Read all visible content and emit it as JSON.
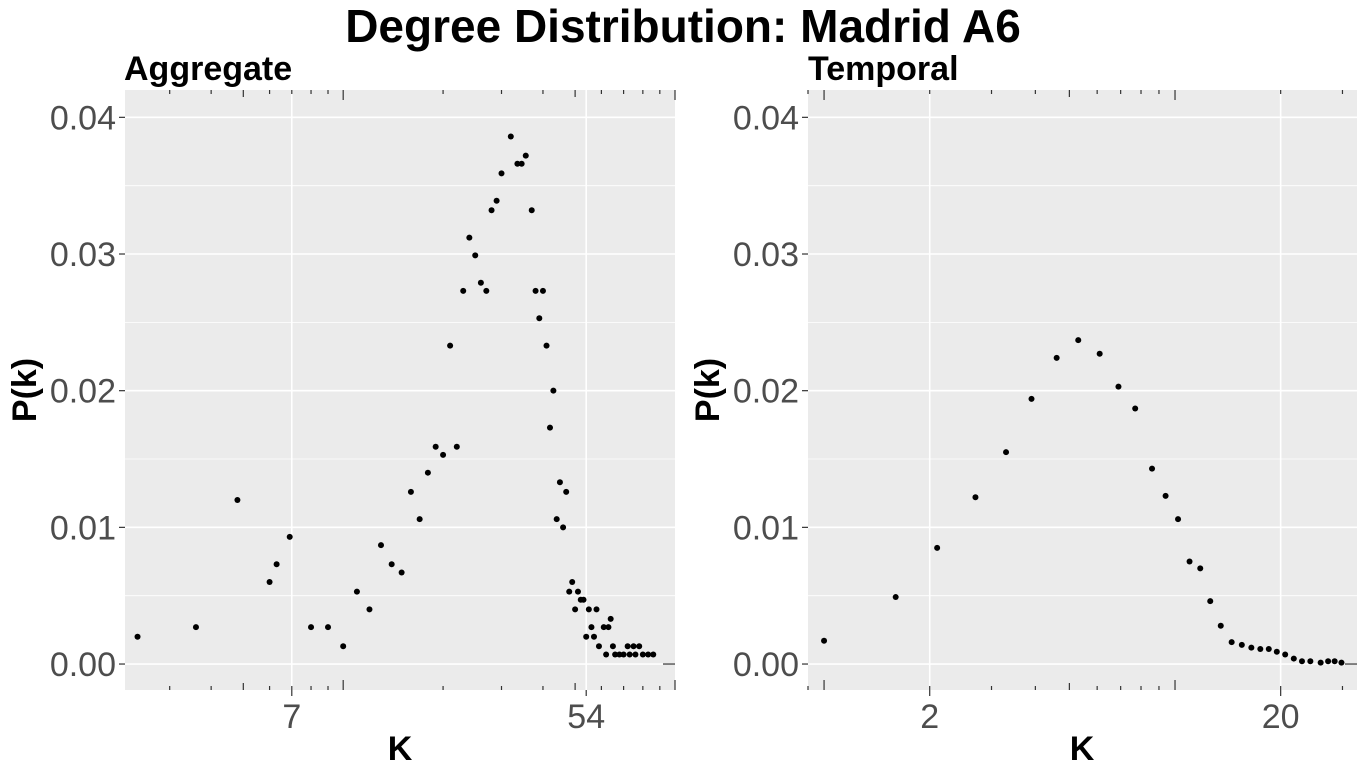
{
  "title": "Degree Distribution:  Madrid A6",
  "chart_data": [
    {
      "type": "scatter",
      "subtitle": "Aggregate",
      "xlabel": "K",
      "ylabel": "P(k)",
      "x_scale": "log",
      "xlim": [
        2.2,
        100
      ],
      "ylim": [
        -0.0019,
        0.042
      ],
      "x_ticks": [
        {
          "value": 7,
          "label": "7"
        },
        {
          "value": 54,
          "label": "54"
        }
      ],
      "y_ticks": [
        {
          "value": 0,
          "label": "0.00"
        },
        {
          "value": 0.01,
          "label": "0.01"
        },
        {
          "value": 0.02,
          "label": "0.02"
        },
        {
          "value": 0.03,
          "label": "0.03"
        },
        {
          "value": 0.04,
          "label": "0.04"
        }
      ],
      "grid": true,
      "points": [
        [
          2.4,
          0.002
        ],
        [
          3.6,
          0.0027
        ],
        [
          4.8,
          0.012
        ],
        [
          6.0,
          0.006
        ],
        [
          6.3,
          0.0073
        ],
        [
          6.9,
          0.0093
        ],
        [
          8.0,
          0.0027
        ],
        [
          9.0,
          0.0027
        ],
        [
          10.0,
          0.0013
        ],
        [
          11.0,
          0.0053
        ],
        [
          12.0,
          0.004
        ],
        [
          13.0,
          0.0087
        ],
        [
          14.0,
          0.0073
        ],
        [
          15.0,
          0.0067
        ],
        [
          16.0,
          0.0126
        ],
        [
          17.0,
          0.0106
        ],
        [
          18.0,
          0.014
        ],
        [
          19.0,
          0.0159
        ],
        [
          20.0,
          0.0153
        ],
        [
          21.0,
          0.0233
        ],
        [
          22.0,
          0.0159
        ],
        [
          23.0,
          0.0273
        ],
        [
          24.0,
          0.0312
        ],
        [
          25.0,
          0.0299
        ],
        [
          26.0,
          0.0279
        ],
        [
          27.0,
          0.0273
        ],
        [
          28.0,
          0.0332
        ],
        [
          29.0,
          0.0339
        ],
        [
          30.0,
          0.0359
        ],
        [
          32.0,
          0.0386
        ],
        [
          33.5,
          0.0366
        ],
        [
          34.5,
          0.0366
        ],
        [
          35.5,
          0.0372
        ],
        [
          37.0,
          0.0332
        ],
        [
          38.0,
          0.0273
        ],
        [
          39.0,
          0.0253
        ],
        [
          40.0,
          0.0273
        ],
        [
          41.0,
          0.0233
        ],
        [
          42.0,
          0.0173
        ],
        [
          43.0,
          0.02
        ],
        [
          44.0,
          0.0106
        ],
        [
          45.0,
          0.0133
        ],
        [
          46.0,
          0.01
        ],
        [
          47.0,
          0.0126
        ],
        [
          48.0,
          0.0053
        ],
        [
          49.0,
          0.006
        ],
        [
          50.0,
          0.004
        ],
        [
          51.0,
          0.0053
        ],
        [
          52.0,
          0.0047
        ],
        [
          53.0,
          0.0047
        ],
        [
          54.0,
          0.002
        ],
        [
          55.0,
          0.004
        ],
        [
          56.0,
          0.0027
        ],
        [
          57.0,
          0.002
        ],
        [
          58.0,
          0.004
        ],
        [
          59.0,
          0.0013
        ],
        [
          61.0,
          0.0027
        ],
        [
          62.0,
          0.0007
        ],
        [
          63.0,
          0.0027
        ],
        [
          64.0,
          0.0033
        ],
        [
          65.0,
          0.0013
        ],
        [
          66.0,
          0.0007
        ],
        [
          68.0,
          0.0007
        ],
        [
          70.0,
          0.0007
        ],
        [
          72.0,
          0.0013
        ],
        [
          73.0,
          0.0007
        ],
        [
          75.0,
          0.0013
        ],
        [
          76.0,
          0.0007
        ],
        [
          78.0,
          0.0013
        ],
        [
          80.0,
          0.0007
        ],
        [
          83.0,
          0.0007
        ],
        [
          86.0,
          0.0007
        ]
      ]
    },
    {
      "type": "scatter",
      "subtitle": "Temporal",
      "xlabel": "K",
      "ylabel": "P(k)",
      "x_scale": "log",
      "xlim": [
        0.9,
        33
      ],
      "ylim": [
        -0.0019,
        0.042
      ],
      "x_ticks": [
        {
          "value": 2,
          "label": "2"
        },
        {
          "value": 20,
          "label": "20"
        }
      ],
      "y_ticks": [
        {
          "value": 0,
          "label": "0.00"
        },
        {
          "value": 0.01,
          "label": "0.01"
        },
        {
          "value": 0.02,
          "label": "0.02"
        },
        {
          "value": 0.03,
          "label": "0.03"
        },
        {
          "value": 0.04,
          "label": "0.04"
        }
      ],
      "grid": true,
      "points": [
        [
          1.0,
          0.0017
        ],
        [
          1.6,
          0.0049
        ],
        [
          2.1,
          0.0085
        ],
        [
          2.7,
          0.0122
        ],
        [
          3.3,
          0.0155
        ],
        [
          3.9,
          0.0194
        ],
        [
          4.6,
          0.0224
        ],
        [
          5.3,
          0.0237
        ],
        [
          6.1,
          0.0227
        ],
        [
          6.9,
          0.0203
        ],
        [
          7.7,
          0.0187
        ],
        [
          8.6,
          0.0143
        ],
        [
          9.4,
          0.0123
        ],
        [
          10.2,
          0.0106
        ],
        [
          11.0,
          0.0075
        ],
        [
          11.8,
          0.007
        ],
        [
          12.6,
          0.0046
        ],
        [
          13.5,
          0.0028
        ],
        [
          14.5,
          0.0016
        ],
        [
          15.5,
          0.0014
        ],
        [
          16.5,
          0.0012
        ],
        [
          17.5,
          0.0011
        ],
        [
          18.5,
          0.0011
        ],
        [
          19.5,
          0.0009
        ],
        [
          20.6,
          0.0007
        ],
        [
          21.8,
          0.0004
        ],
        [
          23.0,
          0.0002
        ],
        [
          24.3,
          0.0002
        ],
        [
          26.0,
          0.0001
        ],
        [
          27.3,
          0.0002
        ],
        [
          28.5,
          0.0002
        ],
        [
          29.8,
          0.0001
        ]
      ]
    }
  ]
}
